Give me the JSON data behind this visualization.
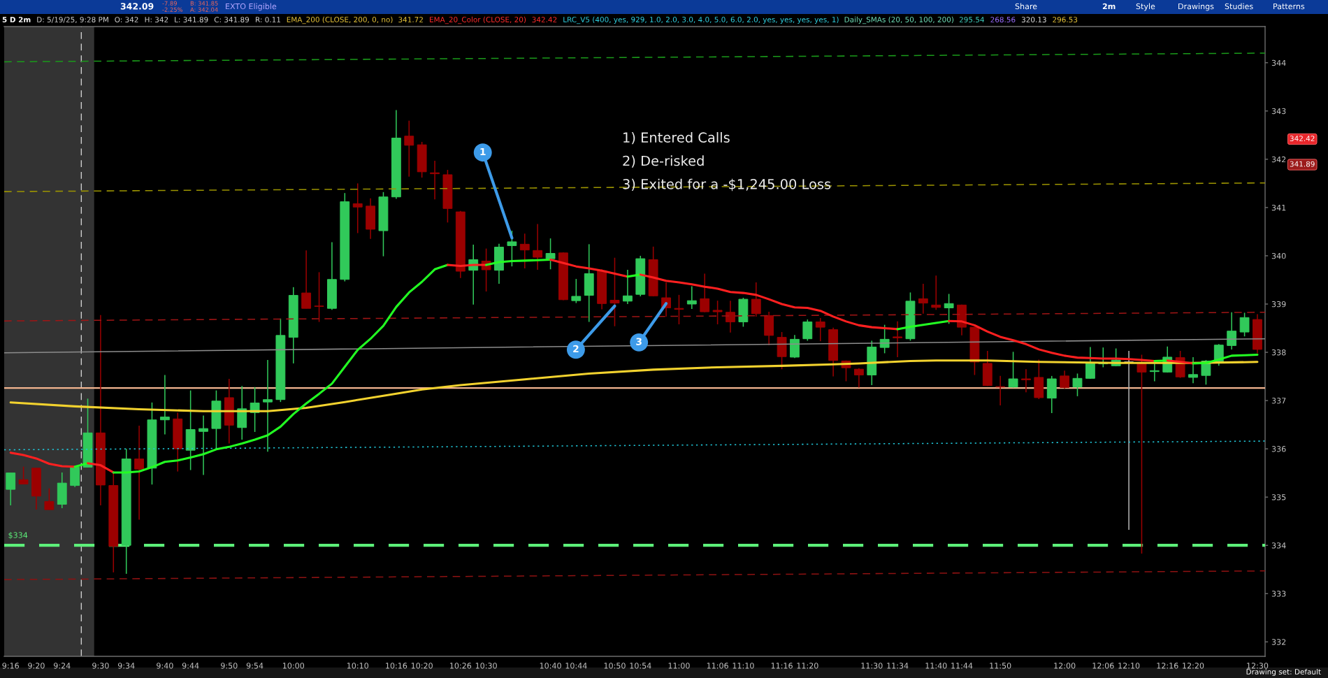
{
  "chart_data": {
    "type": "candlestick",
    "x": [
      9.2667,
      9.3,
      9.3333,
      9.3667,
      9.4,
      9.4333,
      9.4667,
      9.5,
      9.5333,
      9.5667,
      9.6,
      9.6333,
      9.6667,
      9.7,
      9.7333,
      9.7667,
      9.8,
      9.8333,
      9.8667,
      9.9,
      9.9333,
      9.9667,
      10,
      10.0333,
      10.0667,
      10.1,
      10.1333,
      10.1667,
      10.2,
      10.2333,
      10.2667,
      10.3,
      10.3333,
      10.3667,
      10.4,
      10.4333,
      10.4667,
      10.5,
      10.5333,
      10.5667,
      10.6,
      10.6333,
      10.6667,
      10.7,
      10.7333,
      10.7667,
      10.8,
      10.8333,
      10.8667,
      10.9,
      10.9333,
      10.9667,
      11,
      11.0333,
      11.0667,
      11.1,
      11.1333,
      11.1667,
      11.2,
      11.2333,
      11.2667,
      11.3,
      11.3333,
      11.3667,
      11.4,
      11.4333,
      11.4667,
      11.5,
      11.5333,
      11.5667,
      11.6,
      11.6333,
      11.6667,
      11.7,
      11.7333,
      11.7667,
      11.8,
      11.8333,
      11.8667,
      11.9,
      11.9333,
      11.9667,
      12,
      12.0333,
      12.0667,
      12.1,
      12.1333,
      12.1667,
      12.2,
      12.2333,
      12.2667,
      12.3,
      12.3333,
      12.3667,
      12.4,
      12.4333,
      12.4667,
      12.5
    ],
    "ohlc": [
      [
        335.16,
        335.5,
        334.83,
        335.5
      ],
      [
        335.36,
        335.63,
        335.27,
        335.27
      ],
      [
        335.6,
        335.6,
        334.74,
        335.02
      ],
      [
        334.91,
        335.18,
        334.74,
        334.74
      ],
      [
        334.85,
        335.51,
        334.77,
        335.29
      ],
      [
        335.24,
        335.62,
        335.21,
        335.62
      ],
      [
        335.62,
        337.04,
        335.62,
        336.33
      ],
      [
        336.33,
        338.77,
        334.83,
        335.25
      ],
      [
        335.24,
        335.5,
        333.44,
        333.98
      ],
      [
        334.0,
        336.0,
        333.41,
        335.79
      ],
      [
        335.79,
        336.48,
        334.53,
        335.58
      ],
      [
        335.6,
        336.96,
        335.26,
        336.6
      ],
      [
        336.6,
        337.53,
        336.3,
        336.66
      ],
      [
        336.62,
        336.75,
        335.53,
        336.0
      ],
      [
        335.97,
        337.21,
        335.56,
        336.4
      ],
      [
        336.36,
        336.69,
        335.46,
        336.42
      ],
      [
        336.42,
        337.21,
        335.99,
        336.99
      ],
      [
        337.06,
        337.45,
        336.11,
        336.49
      ],
      [
        336.44,
        337.3,
        336.19,
        336.83
      ],
      [
        336.75,
        337.28,
        336.35,
        336.95
      ],
      [
        336.97,
        337.84,
        335.94,
        337.02
      ],
      [
        337.02,
        338.7,
        336.97,
        338.35
      ],
      [
        338.31,
        339.35,
        337.77,
        339.18
      ],
      [
        339.23,
        340.11,
        338.91,
        338.91
      ],
      [
        338.96,
        339.66,
        338.63,
        338.95
      ],
      [
        338.91,
        340.28,
        338.88,
        339.51
      ],
      [
        339.51,
        341.3,
        339.47,
        341.12
      ],
      [
        341.08,
        341.5,
        340.47,
        341.01
      ],
      [
        341.03,
        341.19,
        340.35,
        340.55
      ],
      [
        340.52,
        341.32,
        339.99,
        341.22
      ],
      [
        341.22,
        343.02,
        341.18,
        342.44
      ],
      [
        342.48,
        342.8,
        341.64,
        342.29
      ],
      [
        342.3,
        342.36,
        341.62,
        341.74
      ],
      [
        341.72,
        341.97,
        341.17,
        341.7
      ],
      [
        341.68,
        341.78,
        340.69,
        340.98
      ],
      [
        340.91,
        340.93,
        339.54,
        339.68
      ],
      [
        339.7,
        340.23,
        338.99,
        339.92
      ],
      [
        339.89,
        340.15,
        339.26,
        339.71
      ],
      [
        339.7,
        340.25,
        339.42,
        340.18
      ],
      [
        340.21,
        340.52,
        339.78,
        340.29
      ],
      [
        340.24,
        340.46,
        339.74,
        340.12
      ],
      [
        340.11,
        340.66,
        339.71,
        339.97
      ],
      [
        339.94,
        340.36,
        339.72,
        340.05
      ],
      [
        340.06,
        340.07,
        339.08,
        339.09
      ],
      [
        339.07,
        339.52,
        339.02,
        339.16
      ],
      [
        339.18,
        340.24,
        338.63,
        339.63
      ],
      [
        339.69,
        339.72,
        338.89,
        339.01
      ],
      [
        339.08,
        339.96,
        338.54,
        339.02
      ],
      [
        339.06,
        339.71,
        339.0,
        339.17
      ],
      [
        339.2,
        340.0,
        339.16,
        339.94
      ],
      [
        339.92,
        340.19,
        339.16,
        339.17
      ],
      [
        339.13,
        339.45,
        338.74,
        338.92
      ],
      [
        338.91,
        339.19,
        338.58,
        338.89
      ],
      [
        339.0,
        339.37,
        338.9,
        339.07
      ],
      [
        339.11,
        339.63,
        338.83,
        338.84
      ],
      [
        338.87,
        339.07,
        338.58,
        338.84
      ],
      [
        338.83,
        339.07,
        338.41,
        338.63
      ],
      [
        338.63,
        339.13,
        338.53,
        339.1
      ],
      [
        339.1,
        339.45,
        338.74,
        338.8
      ],
      [
        338.76,
        338.84,
        338.15,
        338.35
      ],
      [
        338.31,
        338.42,
        337.65,
        337.91
      ],
      [
        337.9,
        338.36,
        337.88,
        338.27
      ],
      [
        338.28,
        338.68,
        338.24,
        338.63
      ],
      [
        338.63,
        338.71,
        338.23,
        338.52
      ],
      [
        338.47,
        338.51,
        337.5,
        337.83
      ],
      [
        337.82,
        337.83,
        337.4,
        337.68
      ],
      [
        337.65,
        337.67,
        337.27,
        337.53
      ],
      [
        337.53,
        338.24,
        337.32,
        338.11
      ],
      [
        338.1,
        338.57,
        337.98,
        338.27
      ],
      [
        338.32,
        338.64,
        337.9,
        338.3
      ],
      [
        338.28,
        339.24,
        338.24,
        339.06
      ],
      [
        339.11,
        339.42,
        338.8,
        339.02
      ],
      [
        338.98,
        339.59,
        338.88,
        338.93
      ],
      [
        338.92,
        339.21,
        338.59,
        339.01
      ],
      [
        338.98,
        338.99,
        338.35,
        338.52
      ],
      [
        338.52,
        338.53,
        337.53,
        337.8
      ],
      [
        337.77,
        338.03,
        337.3,
        337.31
      ],
      [
        337.29,
        337.51,
        336.9,
        337.28
      ],
      [
        337.28,
        338.01,
        337.27,
        337.45
      ],
      [
        337.45,
        337.65,
        337.17,
        337.43
      ],
      [
        337.48,
        337.85,
        337.03,
        337.06
      ],
      [
        337.05,
        337.51,
        336.74,
        337.45
      ],
      [
        337.51,
        337.62,
        337.25,
        337.27
      ],
      [
        337.28,
        337.56,
        337.09,
        337.46
      ],
      [
        337.46,
        338.11,
        337.45,
        337.78
      ],
      [
        337.76,
        338.1,
        337.69,
        337.79
      ],
      [
        337.72,
        338.08,
        337.71,
        337.84
      ],
      [
        337.8,
        338.03,
        334.32,
        337.8
      ],
      [
        337.77,
        337.95,
        333.83,
        337.59
      ],
      [
        337.6,
        337.8,
        337.4,
        337.62
      ],
      [
        337.59,
        338.12,
        337.58,
        337.9
      ],
      [
        337.89,
        338.03,
        337.47,
        337.49
      ],
      [
        337.48,
        337.9,
        337.36,
        337.54
      ],
      [
        337.52,
        337.84,
        337.33,
        337.82
      ],
      [
        337.8,
        338.17,
        337.72,
        338.15
      ],
      [
        338.14,
        338.83,
        338.06,
        338.44
      ],
      [
        338.42,
        338.82,
        338.33,
        338.72
      ],
      [
        338.68,
        338.79,
        337.98,
        338.06
      ]
    ],
    "colors": [
      "#31c95a",
      "#9b0000",
      "#9b0000",
      "#9b0000",
      "#31c95a",
      "#31c95a",
      "#31c95a",
      "#9b0000",
      "#9b0000",
      "#31c95a",
      "#9b0000",
      "#31c95a",
      "#31c95a",
      "#9b0000",
      "#31c95a",
      "#31c95a",
      "#31c95a",
      "#9b0000",
      "#31c95a",
      "#31c95a",
      "#31c95a",
      "#31c95a",
      "#31c95a",
      "#9b0000",
      "#9b0000",
      "#31c95a",
      "#31c95a",
      "#9b0000",
      "#9b0000",
      "#31c95a",
      "#31c95a",
      "#9b0000",
      "#9b0000",
      "#9b0000",
      "#9b0000",
      "#9b0000",
      "#31c95a",
      "#9b0000",
      "#31c95a",
      "#31c95a",
      "#9b0000",
      "#9b0000",
      "#31c95a",
      "#9b0000",
      "#31c95a",
      "#31c95a",
      "#9b0000",
      "#9b0000",
      "#31c95a",
      "#31c95a",
      "#9b0000",
      "#9b0000",
      "#9b0000",
      "#31c95a",
      "#9b0000",
      "#9b0000",
      "#9b0000",
      "#31c95a",
      "#9b0000",
      "#9b0000",
      "#9b0000",
      "#31c95a",
      "#31c95a",
      "#9b0000",
      "#9b0000",
      "#9b0000",
      "#9b0000",
      "#31c95a",
      "#31c95a",
      "#9b0000",
      "#31c95a",
      "#9b0000",
      "#9b0000",
      "#31c95a",
      "#9b0000",
      "#9b0000",
      "#9b0000",
      "#9b0000",
      "#31c95a",
      "#9b0000",
      "#9b0000",
      "#31c95a",
      "#9b0000",
      "#31c95a",
      "#31c95a",
      "#31c95a",
      "#31c95a",
      "#b4b4b4",
      "#9b0000",
      "#31c95a",
      "#31c95a",
      "#9b0000",
      "#31c95a",
      "#31c95a",
      "#31c95a",
      "#31c95a",
      "#31c95a",
      "#9b0000"
    ],
    "series": [
      {
        "type": "line",
        "color": "#1a9a1a",
        "line_style": "dashed",
        "x": [
          9.25,
          12.52
        ],
        "values": [
          344.02,
          344.2
        ]
      },
      {
        "type": "line",
        "color": "#9c9400",
        "line_style": "dashed",
        "x": [
          9.25,
          12.52
        ],
        "values": [
          341.33,
          341.51
        ]
      },
      {
        "type": "line",
        "color": "#a01515",
        "line_style": "dashed",
        "x": [
          9.25,
          12.52
        ],
        "values": [
          338.65,
          338.83
        ]
      },
      {
        "type": "line",
        "color": "#8c8c8c",
        "line_style": "solid",
        "x": [
          9.25,
          12.52
        ],
        "values": [
          337.99,
          338.28
        ]
      },
      {
        "type": "line",
        "color": "#21c7d9",
        "line_style": "dotted",
        "x": [
          9.25,
          12.52
        ],
        "values": [
          335.98,
          336.16
        ]
      },
      {
        "type": "line",
        "color": "#8e1212",
        "line_style": "dashed",
        "x": [
          9.25,
          12.52
        ],
        "values": [
          333.29,
          333.47
        ]
      },
      {
        "type": "line",
        "color": "#f2d22e",
        "x": [
          9.2667,
          9.4333,
          9.6,
          9.7667,
          9.9333,
          10.0333,
          10.1333,
          10.2333,
          10.3333,
          10.4333,
          10.6,
          10.7667,
          10.9333,
          11.1,
          11.2667,
          11.4,
          11.4667,
          11.6,
          11.6667,
          11.8,
          11.9333,
          12.1333,
          12.3333,
          12.5
        ],
        "values": [
          336.96,
          336.88,
          336.82,
          336.78,
          336.78,
          336.85,
          336.97,
          337.1,
          337.23,
          337.32,
          337.44,
          337.56,
          337.64,
          337.69,
          337.72,
          337.75,
          337.77,
          337.82,
          337.83,
          337.83,
          337.8,
          337.78,
          337.78,
          337.8
        ]
      },
      {
        "type": "line",
        "color": "#ff2020",
        "x": [
          9.2667,
          9.3,
          9.3333,
          9.3667,
          9.4,
          9.4333
        ],
        "values": [
          335.92,
          335.87,
          335.8,
          335.69,
          335.64,
          335.63
        ]
      },
      {
        "type": "line",
        "color": "#22ff22",
        "x": [
          9.4333,
          9.4667
        ],
        "values": [
          335.63,
          335.7
        ]
      },
      {
        "type": "line",
        "color": "#ff2020",
        "x": [
          9.4667,
          9.5,
          9.5333
        ],
        "values": [
          335.7,
          335.66,
          335.51
        ]
      },
      {
        "type": "line",
        "color": "#22ff22",
        "x": [
          9.5333,
          9.5667,
          9.6,
          9.6333,
          9.6667,
          9.7,
          9.7333,
          9.7667,
          9.8,
          9.8333,
          9.8667,
          9.9,
          9.9333,
          9.9667,
          10,
          10.0333,
          10.0667,
          10.1,
          10.1333,
          10.1667,
          10.2,
          10.2333,
          10.2667,
          10.3,
          10.3333,
          10.3667,
          10.4
        ],
        "values": [
          335.51,
          335.51,
          335.53,
          335.62,
          335.73,
          335.76,
          335.82,
          335.89,
          335.99,
          336.04,
          336.11,
          336.19,
          336.28,
          336.46,
          336.72,
          336.94,
          337.14,
          337.35,
          337.7,
          338.05,
          338.28,
          338.55,
          338.94,
          339.24,
          339.46,
          339.72,
          339.81
        ]
      },
      {
        "type": "line",
        "color": "#ff2020",
        "x": [
          10.4,
          10.4333,
          10.4667,
          10.5
        ],
        "values": [
          339.81,
          339.79,
          339.81,
          339.81
        ]
      },
      {
        "type": "line",
        "color": "#22ff22",
        "x": [
          10.5,
          10.5333,
          10.5667,
          10.6,
          10.6333,
          10.6667
        ],
        "values": [
          339.81,
          339.87,
          339.89,
          339.9,
          339.91,
          339.92
        ]
      },
      {
        "type": "line",
        "color": "#ff2020",
        "x": [
          10.6667,
          10.7,
          10.7333,
          10.7667,
          10.8,
          10.8333,
          10.8667
        ],
        "values": [
          339.92,
          339.85,
          339.78,
          339.74,
          339.69,
          339.63,
          339.57
        ]
      },
      {
        "type": "line",
        "color": "#22ff22",
        "x": [
          10.8667,
          10.9
        ],
        "values": [
          339.57,
          339.61
        ]
      },
      {
        "type": "line",
        "color": "#ff2020",
        "x": [
          10.9,
          10.9333,
          10.9667,
          11,
          11.0333,
          11.0667,
          11.1,
          11.1333,
          11.1667,
          11.2,
          11.2333,
          11.2667,
          11.3,
          11.3333,
          11.3667,
          11.4,
          11.4333,
          11.4667,
          11.5,
          11.5333,
          11.5667
        ],
        "values": [
          339.61,
          339.55,
          339.48,
          339.45,
          339.41,
          339.36,
          339.32,
          339.25,
          339.23,
          339.19,
          339.1,
          339.0,
          338.93,
          338.92,
          338.86,
          338.74,
          338.64,
          338.56,
          338.52,
          338.5,
          338.48
        ]
      },
      {
        "type": "line",
        "color": "#22ff22",
        "x": [
          11.5667,
          11.6,
          11.6333,
          11.6667,
          11.7
        ],
        "values": [
          338.48,
          338.53,
          338.57,
          338.61,
          338.65
        ]
      },
      {
        "type": "line",
        "color": "#ff2020",
        "x": [
          11.7,
          11.7333,
          11.7667,
          11.8,
          11.8333,
          11.8667,
          11.9,
          11.9333,
          11.9667,
          12,
          12.0333,
          12.0667,
          12.1,
          12.1333,
          12.1667,
          12.2,
          12.2333
        ],
        "values": [
          338.65,
          338.64,
          338.56,
          338.43,
          338.32,
          338.25,
          338.17,
          338.06,
          337.99,
          337.93,
          337.89,
          337.88,
          337.87,
          337.87,
          337.86,
          337.84,
          337.82
        ]
      },
      {
        "type": "line",
        "color": "#22ff22",
        "x": [
          12.2333,
          12.2667
        ],
        "values": [
          337.82,
          337.83
        ]
      },
      {
        "type": "line",
        "color": "#ff2020",
        "x": [
          12.2667,
          12.3,
          12.3333
        ],
        "values": [
          337.83,
          337.8,
          337.77
        ]
      },
      {
        "type": "line",
        "color": "#22ff22",
        "x": [
          12.3333,
          12.3667,
          12.4,
          12.4333,
          12.4667,
          12.5
        ],
        "values": [
          337.77,
          337.78,
          337.85,
          337.93,
          337.94,
          337.95
        ]
      }
    ],
    "xlim": [
      9.25,
      12.52
    ],
    "ylim": [
      331.7,
      344.75
    ],
    "xticks": [
      {
        "value": 9.2667,
        "label": "9:16"
      },
      {
        "value": 9.3333,
        "label": "9:20"
      },
      {
        "value": 9.4,
        "label": "9:24"
      },
      {
        "value": 9.5,
        "label": "9:30"
      },
      {
        "value": 9.5667,
        "label": "9:34"
      },
      {
        "value": 9.6667,
        "label": "9:40"
      },
      {
        "value": 9.7333,
        "label": "9:44"
      },
      {
        "value": 9.8333,
        "label": "9:50"
      },
      {
        "value": 9.9,
        "label": "9:54"
      },
      {
        "value": 10,
        "label": "10:00"
      },
      {
        "value": 10.1667,
        "label": "10:10"
      },
      {
        "value": 10.2667,
        "label": "10:16"
      },
      {
        "value": 10.3333,
        "label": "10:20"
      },
      {
        "value": 10.4333,
        "label": "10:26"
      },
      {
        "value": 10.5,
        "label": "10:30"
      },
      {
        "value": 10.6667,
        "label": "10:40"
      },
      {
        "value": 10.7333,
        "label": "10:44"
      },
      {
        "value": 10.8333,
        "label": "10:50"
      },
      {
        "value": 10.9,
        "label": "10:54"
      },
      {
        "value": 11,
        "label": "11:00"
      },
      {
        "value": 11.1,
        "label": "11:06"
      },
      {
        "value": 11.1667,
        "label": "11:10"
      },
      {
        "value": 11.2667,
        "label": "11:16"
      },
      {
        "value": 11.3333,
        "label": "11:20"
      },
      {
        "value": 11.5,
        "label": "11:30"
      },
      {
        "value": 11.5667,
        "label": "11:34"
      },
      {
        "value": 11.6667,
        "label": "11:40"
      },
      {
        "value": 11.7333,
        "label": "11:44"
      },
      {
        "value": 11.8333,
        "label": "11:50"
      },
      {
        "value": 12,
        "label": "12:00"
      },
      {
        "value": 12.1,
        "label": "12:06"
      },
      {
        "value": 12.1667,
        "label": "12:10"
      },
      {
        "value": 12.2667,
        "label": "12:16"
      },
      {
        "value": 12.3333,
        "label": "12:20"
      },
      {
        "value": 12.5,
        "label": "12:30"
      }
    ],
    "yticks": [
      332,
      333,
      334,
      335,
      336,
      337,
      338,
      339,
      340,
      341,
      342,
      343,
      344
    ],
    "ref_lines": [
      {
        "axis": "y",
        "value": 337.26,
        "color": "#f2b48f",
        "line_style": "solid"
      },
      {
        "axis": "y",
        "value": 334,
        "label": "$334",
        "color": "#5df07a",
        "line_style": "dashed"
      },
      {
        "axis": "x",
        "value": 9.45,
        "color": "#cfcfcf",
        "line_style": "dashed"
      }
    ],
    "bands": [
      {
        "axis": "x",
        "from": 9.25,
        "to": 9.4833,
        "color": "#333333"
      }
    ],
    "annotations": [
      "342.09",
      "-7.89",
      "-2.25%",
      "B: 341.85",
      "A: 342.04",
      "EXTO Eligible",
      "Share",
      "2m",
      "Style",
      "Drawings",
      "Studies",
      "Patterns",
      "5 D 2m",
      "D: 5/19/25, 9:28 PM",
      "O: 342",
      "H: 342",
      "L: 341.89",
      "C: 341.89",
      "R: 0.11",
      "EMA_200 (CLOSE, 200, 0, no)",
      "341.72",
      "EMA_20_Color (CLOSE, 20)",
      "342.42",
      "LRC_V5 (400, yes, 929, 1.0, 2.0, 3.0, 4.0, 5.0, 6.0, 2.0, yes, yes, yes, yes, 1)",
      "Daily_SMAs (20, 50, 100, 200)",
      "295.54",
      "268.56",
      "320.13",
      "296.53",
      "1) Entered Calls",
      "2) De-risked",
      "3) Exited for a -$1,245.00 Loss",
      "Drawing set: Default",
      "342.42",
      "341.89",
      {
        "text": "1",
        "x": 10.5667,
        "y": 340.37
      },
      {
        "text": "2",
        "x": 10.8333,
        "y": 338.96
      },
      {
        "text": "3",
        "x": 10.9667,
        "y": 339.01
      }
    ]
  }
}
